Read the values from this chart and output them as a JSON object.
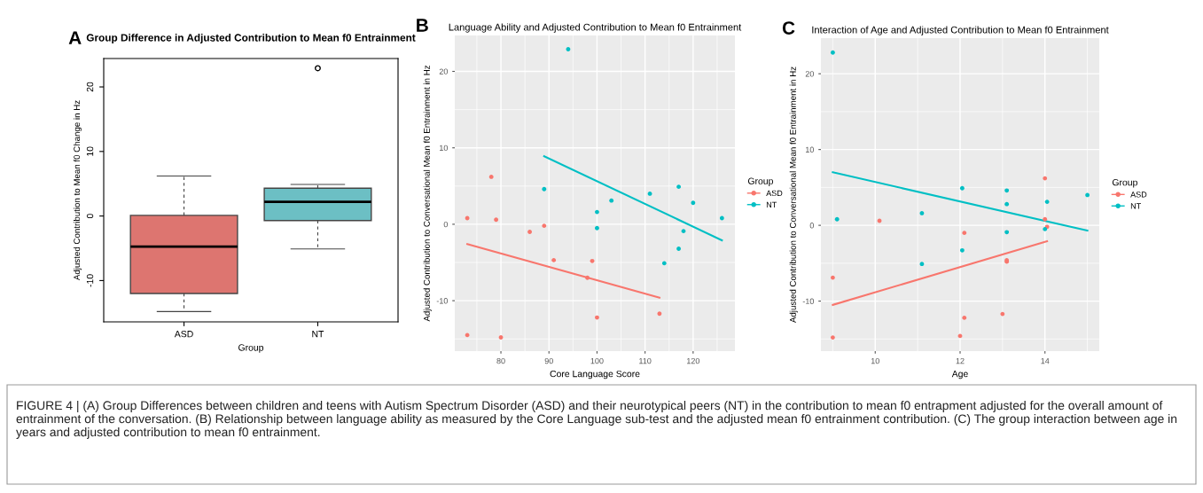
{
  "chart_data": [
    {
      "type": "box",
      "title": "Group Difference in Adjusted Contribution to Mean f0 Entrainment",
      "xlabel": "Group",
      "ylabel": "Adjusted Contribution to Mean f0 Change in Hz",
      "annotations": [
        "A"
      ],
      "categories": [
        "ASD",
        "NT"
      ],
      "colors": [
        "#dd7570",
        "#6cbfc4"
      ],
      "boxes": [
        {
          "low": -14.8,
          "q1": -12.0,
          "median": -4.75,
          "q3": 0.1,
          "high": 6.2
        },
        {
          "low": -5.1,
          "q1": -0.7,
          "median": 2.2,
          "q3": 4.3,
          "high": 4.9,
          "outliers": [
            22.9
          ]
        }
      ],
      "ylim": [
        -16.4,
        24.4
      ],
      "yticks": [
        -10,
        0,
        10,
        20
      ],
      "grid": false
    },
    {
      "type": "scatter",
      "title": "Language Ability and Adjusted Contribution to Mean f0 Entrainment",
      "xlabel": "Core Language Score",
      "ylabel": "Adjusted Contribution to Conversational Mean f0 Entrainment in Hz",
      "legend_title": "Group",
      "annotations": [
        "B"
      ],
      "series": [
        {
          "name": "ASD",
          "color": "#f8766d",
          "x": [
            73,
            78,
            79,
            73,
            80,
            86,
            89,
            91,
            99,
            98,
            100,
            113
          ],
          "values": [
            0.8,
            6.2,
            0.6,
            -14.5,
            -14.8,
            -1.0,
            -0.2,
            -4.7,
            -4.8,
            -7.0,
            -12.2,
            -11.7
          ]
        },
        {
          "name": "NT",
          "color": "#00bfc4",
          "x": [
            94,
            89,
            103,
            100,
            100,
            111,
            117,
            120,
            126,
            118,
            117,
            114
          ],
          "values": [
            22.9,
            4.6,
            3.1,
            1.6,
            -0.5,
            4.0,
            4.9,
            2.8,
            0.8,
            -0.9,
            -3.2,
            -5.1
          ]
        },
        {
          "type": "line",
          "marker": "none",
          "color": "#f8766d",
          "x": [
            73,
            113
          ],
          "values": [
            -2.6,
            -9.6
          ]
        },
        {
          "type": "line",
          "marker": "none",
          "color": "#00bfc4",
          "x": [
            89,
            126
          ],
          "values": [
            8.9,
            -2.1
          ]
        }
      ],
      "xlim": [
        70.4,
        128.7
      ],
      "xticks": [
        80,
        90,
        100,
        110,
        120
      ],
      "ylim": [
        -16.6,
        24.7
      ],
      "yticks": [
        -10,
        0,
        10,
        20
      ],
      "grid": true,
      "legend": "right",
      "marker": "circle"
    },
    {
      "type": "scatter",
      "title": "Interaction of Age and Adjusted Contribution to Mean f0 Entrainment",
      "xlabel": "Age",
      "ylabel": "Adjusted Contribution to Conversational Mean f0 Entrainment in Hz",
      "legend_title": "Group",
      "annotations": [
        "C",
        "FIGURE 4 | (A) Group Differences between children and teens with Autism Spectrum Disorder (ASD) and their neurotypical peers (NT) in the contribution to mean f0 entrapment adjusted for the overall amount of entrainment of the conversation. (B) Relationship between language ability as measured by the Core Language sub-test and the adjusted mean f0 entrainment contribution. (C) The group interaction between age in years and adjusted contribution to mean f0 entrainment."
      ],
      "series": [
        {
          "name": "ASD",
          "color": "#f8766d",
          "x": [
            9.0,
            9.0,
            10.1,
            12.1,
            12.0,
            12.1,
            13.0,
            13.1,
            13.1,
            14.0,
            14.0,
            14.05
          ],
          "values": [
            -14.8,
            -6.9,
            0.6,
            -1.0,
            -14.6,
            -12.2,
            -11.7,
            -4.6,
            -4.8,
            6.2,
            0.8,
            -0.2
          ]
        },
        {
          "name": "NT",
          "color": "#00bfc4",
          "x": [
            9.0,
            9.1,
            11.1,
            11.1,
            12.05,
            12.05,
            13.1,
            13.1,
            13.1,
            14.0,
            14.05,
            15.0
          ],
          "values": [
            22.8,
            0.8,
            1.6,
            -5.1,
            4.9,
            -3.3,
            4.6,
            2.8,
            -0.9,
            -0.5,
            3.1,
            4.0
          ]
        },
        {
          "type": "line",
          "marker": "none",
          "color": "#f8766d",
          "x": [
            9.0,
            14.05
          ],
          "values": [
            -10.5,
            -2.1
          ]
        },
        {
          "type": "line",
          "marker": "none",
          "color": "#00bfc4",
          "x": [
            9.0,
            15.0
          ],
          "values": [
            7.0,
            -0.7
          ]
        }
      ],
      "xlim": [
        8.72,
        15.28
      ],
      "xticks": [
        10,
        12,
        14
      ],
      "ylim": [
        -16.6,
        24.7
      ],
      "yticks": [
        -10,
        0,
        10,
        20
      ],
      "grid": true,
      "legend": "right",
      "marker": "circle"
    }
  ]
}
